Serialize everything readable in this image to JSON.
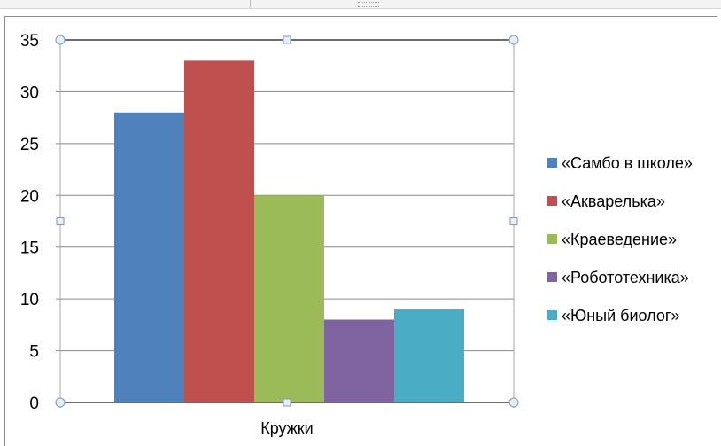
{
  "chart_data": {
    "type": "bar",
    "categories": [
      "Кружки"
    ],
    "series": [
      {
        "name": "«Самбо в школе»",
        "values": [
          28
        ],
        "color": "#4f81bd"
      },
      {
        "name": "«Акварелька»",
        "values": [
          33
        ],
        "color": "#c0504d"
      },
      {
        "name": "«Краеведение»",
        "values": [
          20
        ],
        "color": "#9bbb59"
      },
      {
        "name": "«Робототехника»",
        "values": [
          8
        ],
        "color": "#8064a2"
      },
      {
        "name": "«Юный биолог»",
        "values": [
          9
        ],
        "color": "#4bacc6"
      }
    ],
    "y_ticks": [
      "0",
      "5",
      "10",
      "15",
      "20",
      "25",
      "30",
      "35"
    ],
    "ylim": [
      0,
      35
    ],
    "title": "",
    "xlabel": "",
    "ylabel": "",
    "grid": true,
    "legend_position": "right"
  }
}
